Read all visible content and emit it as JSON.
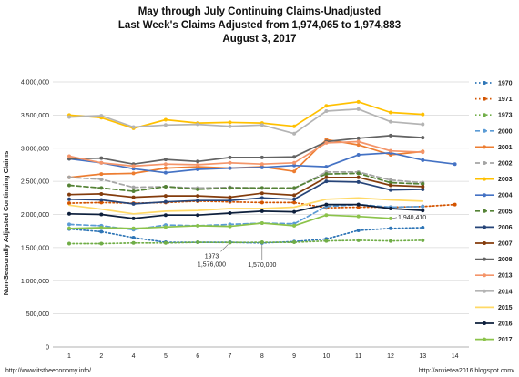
{
  "chart_data": {
    "type": "line",
    "title": "May through July Continuing Claims-Unadjusted",
    "subtitle": "Last Week's Claims Adjusted from 1,974,065 to 1,974,883",
    "date_line": "August 3, 2017",
    "ylabel": "Non-Seasonally Adjusted Continuing Claims",
    "xlabel": "",
    "x": [
      1,
      2,
      4,
      5,
      6,
      7,
      8,
      9,
      10,
      11,
      12,
      13,
      14
    ],
    "x_ticks": [
      "1",
      "2",
      "4",
      "5",
      "6",
      "7",
      "8",
      "9",
      "10",
      "11",
      "12",
      "13",
      "14"
    ],
    "ylim": [
      0,
      4000000
    ],
    "y_ticks": [
      "0",
      "500,000",
      "1,000,000",
      "1,500,000",
      "2,000,000",
      "2,500,000",
      "3,000,000",
      "3,500,000",
      "4,000,000"
    ],
    "grid": true,
    "legend_position": "right",
    "series": [
      {
        "name": "1970",
        "color": "#2e75b6",
        "dash": "dot",
        "marker": true,
        "values": [
          1780000,
          1740000,
          1650000,
          1580000,
          1580000,
          1580000,
          1570000,
          1590000,
          1630000,
          1760000,
          1790000,
          1800000,
          null
        ]
      },
      {
        "name": "1971",
        "color": "#d35400",
        "dash": "dot",
        "marker": true,
        "values": [
          2170000,
          2180000,
          2170000,
          2180000,
          2200000,
          2190000,
          2180000,
          2180000,
          2100000,
          2110000,
          2110000,
          2120000,
          2150000
        ]
      },
      {
        "name": "1973",
        "color": "#70ad47",
        "dash": "dot",
        "marker": true,
        "values": [
          1560000,
          1560000,
          1570000,
          1570000,
          1580000,
          1576000,
          1580000,
          1580000,
          1600000,
          1610000,
          1600000,
          1610000,
          null
        ]
      },
      {
        "name": "2000",
        "color": "#5b9bd5",
        "dash": "dash",
        "marker": true,
        "values": [
          1850000,
          1830000,
          1770000,
          1840000,
          1830000,
          1850000,
          1870000,
          1860000,
          2120000,
          2150000,
          2110000,
          2120000,
          null
        ]
      },
      {
        "name": "2001",
        "color": "#ed7d31",
        "dash": "solid",
        "marker": true,
        "values": [
          2560000,
          2610000,
          2620000,
          2700000,
          2720000,
          2700000,
          2720000,
          2650000,
          3130000,
          3050000,
          2900000,
          2950000,
          null
        ]
      },
      {
        "name": "2002",
        "color": "#a5a5a5",
        "dash": "dash",
        "marker": true,
        "values": [
          2560000,
          2530000,
          2410000,
          2420000,
          2400000,
          2410000,
          2400000,
          2390000,
          2640000,
          2640000,
          2520000,
          2480000,
          null
        ]
      },
      {
        "name": "2003",
        "color": "#ffc000",
        "dash": "solid",
        "marker": true,
        "values": [
          3500000,
          3460000,
          3300000,
          3430000,
          3380000,
          3390000,
          3380000,
          3330000,
          3640000,
          3700000,
          3540000,
          3510000,
          null
        ]
      },
      {
        "name": "2004",
        "color": "#4472c4",
        "dash": "solid",
        "marker": true,
        "values": [
          2840000,
          2780000,
          2690000,
          2630000,
          2680000,
          2700000,
          2710000,
          2740000,
          2720000,
          2900000,
          2930000,
          2820000,
          2760000
        ]
      },
      {
        "name": "2005",
        "color": "#548235",
        "dash": "dash",
        "marker": true,
        "values": [
          2440000,
          2400000,
          2350000,
          2420000,
          2380000,
          2400000,
          2400000,
          2400000,
          2610000,
          2620000,
          2480000,
          2460000,
          null
        ]
      },
      {
        "name": "2006",
        "color": "#264478",
        "dash": "solid",
        "marker": true,
        "values": [
          2230000,
          2220000,
          2160000,
          2190000,
          2210000,
          2210000,
          2250000,
          2230000,
          2500000,
          2490000,
          2370000,
          2380000,
          null
        ]
      },
      {
        "name": "2007",
        "color": "#843c0c",
        "dash": "solid",
        "marker": true,
        "values": [
          2300000,
          2310000,
          2260000,
          2280000,
          2280000,
          2260000,
          2320000,
          2290000,
          2560000,
          2560000,
          2440000,
          2420000,
          null
        ]
      },
      {
        "name": "2008",
        "color": "#636363",
        "dash": "solid",
        "marker": true,
        "values": [
          2840000,
          2850000,
          2760000,
          2830000,
          2800000,
          2860000,
          2860000,
          2870000,
          3100000,
          3150000,
          3190000,
          3160000,
          null
        ]
      },
      {
        "name": "2013",
        "color": "#f4956a",
        "dash": "solid",
        "marker": true,
        "values": [
          2880000,
          2780000,
          2730000,
          2760000,
          2750000,
          2780000,
          2760000,
          2780000,
          3080000,
          3100000,
          2960000,
          2940000,
          null
        ]
      },
      {
        "name": "2014",
        "color": "#b4b4b4",
        "dash": "solid",
        "marker": true,
        "values": [
          3470000,
          3490000,
          3320000,
          3350000,
          3360000,
          3330000,
          3350000,
          3220000,
          3560000,
          3590000,
          3400000,
          3360000,
          null
        ]
      },
      {
        "name": "2015",
        "color": "#ffd966",
        "dash": "solid",
        "marker": false,
        "values": [
          2140000,
          2080000,
          2010000,
          2050000,
          2060000,
          2090000,
          2090000,
          2110000,
          2230000,
          2250000,
          2220000,
          2200000,
          null
        ]
      },
      {
        "name": "2016",
        "color": "#0d1f3c",
        "dash": "solid",
        "marker": true,
        "values": [
          2010000,
          2000000,
          1940000,
          1990000,
          1990000,
          2020000,
          2050000,
          2040000,
          2150000,
          2150000,
          2090000,
          2060000,
          null
        ]
      },
      {
        "name": "2017",
        "color": "#8bc34a",
        "dash": "solid",
        "marker": true,
        "values": [
          1790000,
          1800000,
          1790000,
          1810000,
          1830000,
          1820000,
          1870000,
          1830000,
          1990000,
          1970000,
          1940410,
          null,
          null
        ]
      }
    ],
    "annotations": [
      {
        "text": "1973",
        "x": 7,
        "y": 1576000
      },
      {
        "text": "1,576,000",
        "x": 7,
        "y": 1576000
      },
      {
        "text": "1,570,000",
        "x": 8,
        "y": 1570000
      },
      {
        "text": "1,940,410",
        "x": 12,
        "y": 1940410
      }
    ]
  },
  "footer": {
    "left": "http://www.itstheeconomy.info/",
    "right": "http://anxietea2016.blogspot.com/"
  }
}
